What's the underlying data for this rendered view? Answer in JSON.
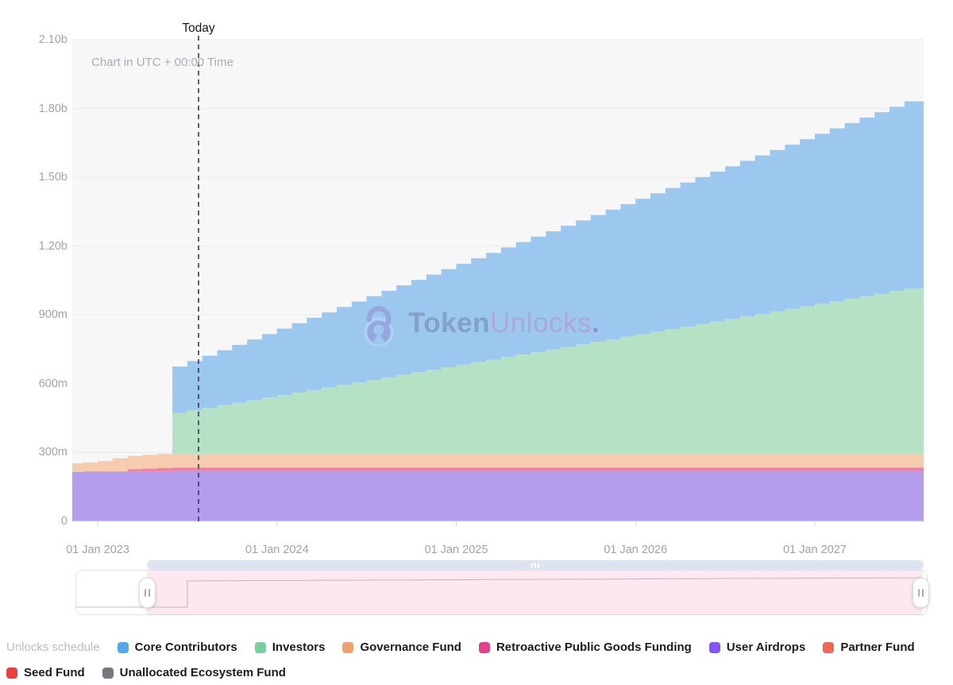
{
  "header": {
    "today_label": "Today",
    "utc_note": "Chart in UTC + 00:00 Time"
  },
  "watermark": {
    "icon": "open-lock-icon",
    "brand_bold": "Token",
    "brand_light": "Unlocks",
    "brand_dot": "."
  },
  "legend": {
    "title": "Unlocks schedule",
    "items": [
      {
        "label": "Core Contributors",
        "color": "#58a6ed"
      },
      {
        "label": "Investors",
        "color": "#79cf9e"
      },
      {
        "label": "Governance Fund",
        "color": "#f0a170"
      },
      {
        "label": "Retroactive Public Goods Funding",
        "color": "#e0418d"
      },
      {
        "label": "User Airdrops",
        "color": "#8355f2"
      },
      {
        "label": "Partner Fund",
        "color": "#ec6a55"
      },
      {
        "label": "Seed Fund",
        "color": "#e84040"
      },
      {
        "label": "Unallocated Ecosystem Fund",
        "color": "#75797f"
      }
    ]
  },
  "chart_data": {
    "type": "area",
    "stacked": true,
    "step": "monthly",
    "title": "Unlocks schedule",
    "unit": "tokens",
    "x_start": "2022-11",
    "x_interval": "month",
    "n_months": 57,
    "ylim": [
      0,
      2100
    ],
    "grid": true,
    "today_month_index": 8.75,
    "y_ticks": [
      {
        "label": "0",
        "value": 0
      },
      {
        "label": "300m",
        "value": 300
      },
      {
        "label": "600m",
        "value": 600
      },
      {
        "label": "900m",
        "value": 900
      },
      {
        "label": "1.20b",
        "value": 1200
      },
      {
        "label": "1.50b",
        "value": 1500
      },
      {
        "label": "1.80b",
        "value": 1800
      },
      {
        "label": "2.10b",
        "value": 2100
      }
    ],
    "x_ticks": [
      {
        "label": "01 Jan 2023",
        "month_index": 2
      },
      {
        "label": "01 Jan 2024",
        "month_index": 14
      },
      {
        "label": "01 Jan 2025",
        "month_index": 26
      },
      {
        "label": "01 Jan 2026",
        "month_index": 38
      },
      {
        "label": "01 Jan 2027",
        "month_index": 50
      }
    ],
    "series": [
      {
        "name": "User Airdrops",
        "area_color": "#b49dea",
        "values": [
          215,
          218,
          218,
          218,
          218,
          218,
          218,
          220,
          220,
          220,
          220,
          220,
          220,
          220,
          220,
          220,
          220,
          220,
          220,
          220,
          220,
          220,
          220,
          220,
          220,
          220,
          220,
          220,
          220,
          220,
          220,
          220,
          220,
          220,
          220,
          220,
          220,
          220,
          220,
          220,
          220,
          220,
          220,
          220,
          220,
          220,
          220,
          220,
          220,
          220,
          220,
          220,
          220,
          220,
          220,
          220,
          220
        ]
      },
      {
        "name": "Retroactive Public Goods Funding",
        "area_color": "#f07fa9",
        "values": [
          0,
          0,
          0,
          0,
          10,
          12,
          14,
          14,
          14,
          14,
          14,
          14,
          14,
          14,
          14,
          14,
          14,
          14,
          14,
          14,
          14,
          14,
          14,
          14,
          14,
          14,
          14,
          14,
          14,
          14,
          14,
          14,
          14,
          14,
          14,
          14,
          14,
          14,
          14,
          14,
          14,
          14,
          14,
          14,
          14,
          14,
          14,
          14,
          14,
          14,
          14,
          14,
          14,
          14,
          14,
          14,
          14
        ]
      },
      {
        "name": "Governance Fund",
        "area_color": "#f5cdae",
        "values": [
          38,
          38,
          45,
          57,
          57,
          60,
          62,
          61,
          61,
          61,
          61,
          61,
          61,
          61,
          61,
          61,
          61,
          61,
          61,
          61,
          61,
          61,
          61,
          61,
          61,
          61,
          61,
          61,
          61,
          61,
          61,
          61,
          61,
          61,
          61,
          61,
          61,
          61,
          61,
          61,
          61,
          61,
          61,
          61,
          61,
          61,
          61,
          61,
          61,
          61,
          61,
          61,
          61,
          61,
          61,
          61,
          61
        ]
      },
      {
        "name": "Investors",
        "area_color": "#b5e2c5",
        "values": [
          0,
          0,
          0,
          0,
          0,
          0,
          0,
          178,
          189.1,
          200.1,
          211.2,
          222.2,
          233.3,
          244.4,
          255.4,
          266.5,
          277.5,
          288.6,
          299.7,
          310.7,
          321.8,
          332.8,
          343.9,
          355,
          366,
          377.1,
          388.1,
          399.2,
          410.3,
          421.3,
          432.4,
          443.4,
          454.5,
          465.6,
          476.6,
          487.7,
          498.7,
          509.8,
          520.9,
          531.9,
          543,
          554,
          565.1,
          576.2,
          587.2,
          598.3,
          609.3,
          620.4,
          631.5,
          642.5,
          653.6,
          664.6,
          675.7,
          686.8,
          697.8,
          708.9,
          719.9
        ]
      },
      {
        "name": "Core Contributors",
        "area_color": "#9cc8f0",
        "values": [
          0,
          0,
          0,
          0,
          0,
          0,
          0,
          202,
          214.5,
          227.1,
          239.6,
          252.2,
          264.7,
          277.2,
          289.8,
          302.3,
          314.9,
          327.4,
          339.9,
          352.5,
          365,
          377.6,
          390.1,
          402.6,
          415.2,
          427.7,
          440.3,
          452.8,
          465.3,
          477.9,
          490.4,
          503,
          515.5,
          528,
          540.6,
          553.1,
          565.7,
          578.2,
          590.7,
          603.3,
          615.8,
          628.4,
          640.9,
          653.4,
          666,
          678.5,
          691.1,
          703.6,
          716.1,
          728.7,
          741.2,
          753.8,
          766.3,
          778.8,
          791.4,
          803.9,
          816.5
        ]
      },
      {
        "name": "Partner Fund",
        "area_color": "#ec6a55",
        "values": []
      },
      {
        "name": "Seed Fund",
        "area_color": "#e84040",
        "values": []
      },
      {
        "name": "Unallocated Ecosystem Fund",
        "area_color": "#75797f",
        "values": []
      }
    ]
  },
  "colors": {
    "plot_background": "#f7f7f8",
    "gridline": "#ebebee",
    "axis_line": "#e0e0e4",
    "tick_mark": "#d6d6da",
    "today_line": "#353b4f",
    "zoom_bar": "#dee3f2",
    "brush_selection": "rgba(223,77,125,0.12)",
    "preview_outline": "#c5c2ca"
  }
}
